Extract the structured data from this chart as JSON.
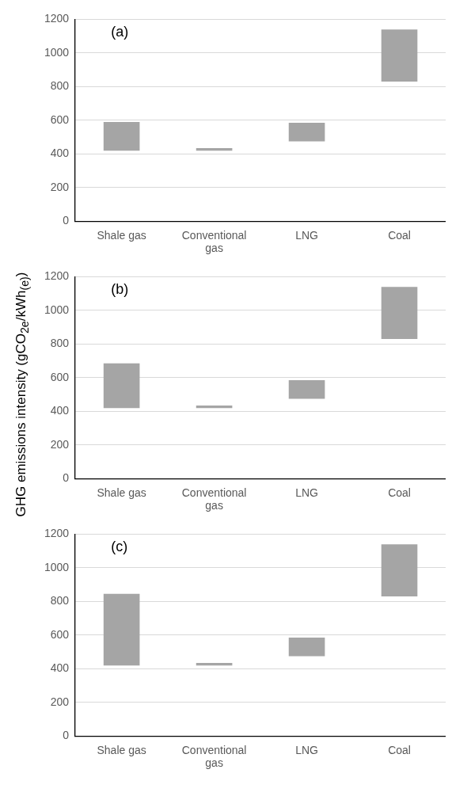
{
  "chart_data": [
    {
      "type": "bar",
      "categories": [
        "Shale gas",
        "Conventional gas",
        "LNG",
        "Coal"
      ],
      "values": [
        170,
        15,
        110,
        310
      ],
      "base": [
        420,
        420,
        475,
        830
      ],
      "color": "#a5a5a5",
      "ylim": [
        0,
        1200
      ],
      "yticks": [
        0,
        200,
        400,
        600,
        800,
        1000,
        1200
      ],
      "grid": "y",
      "annotations": [
        "(a)"
      ]
    },
    {
      "type": "bar",
      "categories": [
        "Shale gas",
        "Conventional gas",
        "LNG",
        "Coal"
      ],
      "values": [
        265,
        15,
        110,
        310
      ],
      "base": [
        420,
        420,
        475,
        830
      ],
      "color": "#a5a5a5",
      "ylim": [
        0,
        1200
      ],
      "yticks": [
        0,
        200,
        400,
        600,
        800,
        1000,
        1200
      ],
      "grid": "y",
      "ylabel": "GHG emissions intensity (gCO$_{2e}$/kWh$_{(e)}$)",
      "annotations": [
        "(b)"
      ]
    },
    {
      "type": "bar",
      "categories": [
        "Shale gas",
        "Conventional gas",
        "LNG",
        "Coal"
      ],
      "values": [
        425,
        15,
        110,
        310
      ],
      "base": [
        420,
        420,
        475,
        830
      ],
      "color": "#a5a5a5",
      "ylim": [
        0,
        1200
      ],
      "yticks": [
        0,
        200,
        400,
        600,
        800,
        1000,
        1200
      ],
      "grid": "y",
      "annotations": [
        "(c)"
      ]
    }
  ]
}
